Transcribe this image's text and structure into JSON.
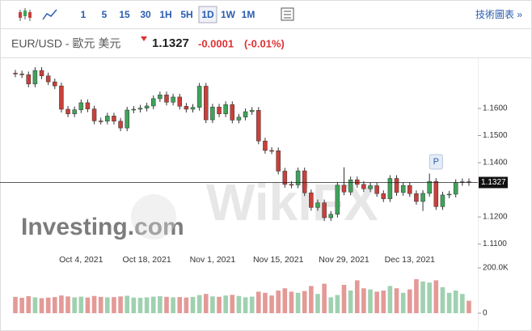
{
  "toolbar": {
    "intervals": [
      "1",
      "5",
      "15",
      "30",
      "1H",
      "5H",
      "1D",
      "1W",
      "1M"
    ],
    "selected": "1D",
    "link": "技術圖表 »"
  },
  "quote": {
    "symbol": "EUR/USD - 歐元 美元",
    "price": "1.1327",
    "change": "-0.0001",
    "change_pct": "(-0.01%)"
  },
  "chart_data": {
    "type": "candlestick",
    "watermarks": [
      "Investing.com",
      "WikiFX"
    ],
    "marker_label": "P",
    "categories": [
      null,
      null,
      null,
      null,
      null,
      null,
      null,
      null,
      null,
      null,
      "Oct 4, 2021",
      null,
      null,
      null,
      null,
      null,
      null,
      null,
      null,
      null,
      "Oct 18, 2021",
      null,
      null,
      null,
      null,
      null,
      null,
      null,
      null,
      null,
      "Nov 1, 2021",
      null,
      null,
      null,
      null,
      null,
      null,
      null,
      null,
      null,
      "Nov 15, 2021",
      null,
      null,
      null,
      null,
      null,
      null,
      null,
      null,
      null,
      "Nov 29, 2021",
      null,
      null,
      null,
      null,
      null,
      null,
      null,
      null,
      null,
      "Dec 13, 2021",
      null,
      null,
      null,
      null,
      null,
      null,
      null,
      null,
      null
    ],
    "open": [
      1.173,
      1.1727,
      1.1724,
      1.169,
      1.174,
      1.172,
      1.1698,
      1.1683,
      1.1597,
      1.158,
      1.1595,
      1.1621,
      1.1598,
      1.1554,
      1.1553,
      1.1572,
      1.1553,
      1.1528,
      1.1594,
      1.1597,
      1.1601,
      1.1609,
      1.1636,
      1.165,
      1.1623,
      1.1642,
      1.1608,
      1.1597,
      1.1604,
      1.1682,
      1.1558,
      1.1605,
      1.158,
      1.1614,
      1.1557,
      1.1568,
      1.1588,
      1.1593,
      1.148,
      1.1445,
      1.1444,
      1.1369,
      1.132,
      1.1318,
      1.137,
      1.1289,
      1.1235,
      1.1252,
      1.1197,
      1.121,
      1.1317,
      1.1292,
      1.1337,
      1.132,
      1.1304,
      1.1315,
      1.1286,
      1.1267,
      1.1342,
      1.129,
      1.1316,
      1.1286,
      1.1257,
      1.1287,
      1.1331,
      1.1238,
      1.1281,
      1.1284,
      1.1327,
      1.133
    ],
    "high": [
      1.1742,
      1.1739,
      1.1736,
      1.1752,
      1.1752,
      1.1732,
      1.171,
      1.1695,
      1.1609,
      1.1607,
      1.1633,
      1.1633,
      1.161,
      1.1566,
      1.1584,
      1.1584,
      1.1565,
      1.1606,
      1.1609,
      1.1613,
      1.1621,
      1.1648,
      1.1662,
      1.1662,
      1.1654,
      1.1654,
      1.162,
      1.1616,
      1.1694,
      1.1694,
      1.1617,
      1.1617,
      1.1626,
      1.1626,
      1.158,
      1.16,
      1.1605,
      1.1605,
      1.1492,
      1.1457,
      1.1456,
      1.1381,
      1.1332,
      1.1382,
      1.1382,
      1.1301,
      1.1264,
      1.1264,
      1.1222,
      1.1329,
      1.1383,
      1.1349,
      1.1349,
      1.1332,
      1.1327,
      1.1327,
      1.1298,
      1.1354,
      1.1354,
      1.1328,
      1.1328,
      1.1298,
      1.1299,
      1.136,
      1.1343,
      1.1293,
      1.1296,
      1.1339,
      1.1342,
      1.1342
    ],
    "low": [
      1.1715,
      1.1712,
      1.1678,
      1.1678,
      1.1708,
      1.1686,
      1.1671,
      1.1585,
      1.1568,
      1.1568,
      1.1583,
      1.1586,
      1.1542,
      1.1541,
      1.1541,
      1.1541,
      1.1516,
      1.1516,
      1.1582,
      1.1585,
      1.1589,
      1.1597,
      1.1624,
      1.1611,
      1.1611,
      1.1596,
      1.1585,
      1.1585,
      1.1592,
      1.1546,
      1.1546,
      1.1568,
      1.1568,
      1.1545,
      1.1545,
      1.1556,
      1.1576,
      1.1468,
      1.1433,
      1.1432,
      1.1357,
      1.1308,
      1.1306,
      1.1306,
      1.1277,
      1.1223,
      1.1223,
      1.1185,
      1.1185,
      1.1198,
      1.128,
      1.128,
      1.1308,
      1.1292,
      1.1292,
      1.1274,
      1.1255,
      1.1255,
      1.1278,
      1.1278,
      1.1274,
      1.1245,
      1.1222,
      1.1275,
      1.1226,
      1.1226,
      1.1269,
      1.1272,
      1.1315,
      1.1315
    ],
    "close": [
      1.1727,
      1.1724,
      1.169,
      1.174,
      1.172,
      1.1698,
      1.1683,
      1.1597,
      1.158,
      1.1595,
      1.1621,
      1.1598,
      1.1554,
      1.1553,
      1.1572,
      1.1553,
      1.1528,
      1.1594,
      1.1597,
      1.1601,
      1.1609,
      1.1636,
      1.165,
      1.1623,
      1.1642,
      1.1608,
      1.1597,
      1.1604,
      1.1682,
      1.1558,
      1.1605,
      1.158,
      1.1614,
      1.1557,
      1.1568,
      1.1588,
      1.1593,
      1.148,
      1.1445,
      1.1444,
      1.1369,
      1.132,
      1.1318,
      1.137,
      1.1289,
      1.1235,
      1.1252,
      1.1197,
      1.121,
      1.1317,
      1.1292,
      1.1337,
      1.132,
      1.1304,
      1.1315,
      1.1286,
      1.1267,
      1.1342,
      1.129,
      1.1316,
      1.1286,
      1.1257,
      1.1287,
      1.1331,
      1.1238,
      1.1281,
      1.1284,
      1.1327,
      1.133,
      1.1327
    ],
    "volume": [
      72000,
      68000,
      75000,
      70000,
      66000,
      69000,
      71000,
      78000,
      74000,
      70000,
      73000,
      69000,
      76000,
      72000,
      70000,
      71000,
      74000,
      77000,
      69000,
      68000,
      70000,
      73000,
      75000,
      72000,
      70000,
      71000,
      69000,
      72000,
      80000,
      85000,
      74000,
      72000,
      78000,
      81000,
      76000,
      70000,
      73000,
      95000,
      90000,
      78000,
      100000,
      110000,
      95000,
      90000,
      98000,
      120000,
      85000,
      130000,
      70000,
      80000,
      125000,
      100000,
      145000,
      110000,
      105000,
      95000,
      100000,
      120000,
      110000,
      90000,
      105000,
      150000,
      140000,
      135000,
      145000,
      115000,
      90000,
      100000,
      85000,
      55000
    ],
    "ylim": [
      1.1069,
      1.1761
    ],
    "yticks": [
      {
        "value": 1.16,
        "label": "1.1600"
      },
      {
        "value": 1.15,
        "label": "1.1500"
      },
      {
        "value": 1.14,
        "label": "1.1400"
      },
      {
        "value": 1.12,
        "label": "1.1200"
      },
      {
        "value": 1.11,
        "label": "1.1100"
      }
    ],
    "volume_ylim": [
      0,
      200000
    ],
    "volume_yticks": [
      0,
      {
        "value": 200000,
        "label": "200.0K"
      }
    ],
    "last_price": 1.1327,
    "up_color": "#3fa35b",
    "down_color": "#c9403a",
    "up_volume_color": "#9fd1b0",
    "down_volume_color": "#e39a97"
  }
}
